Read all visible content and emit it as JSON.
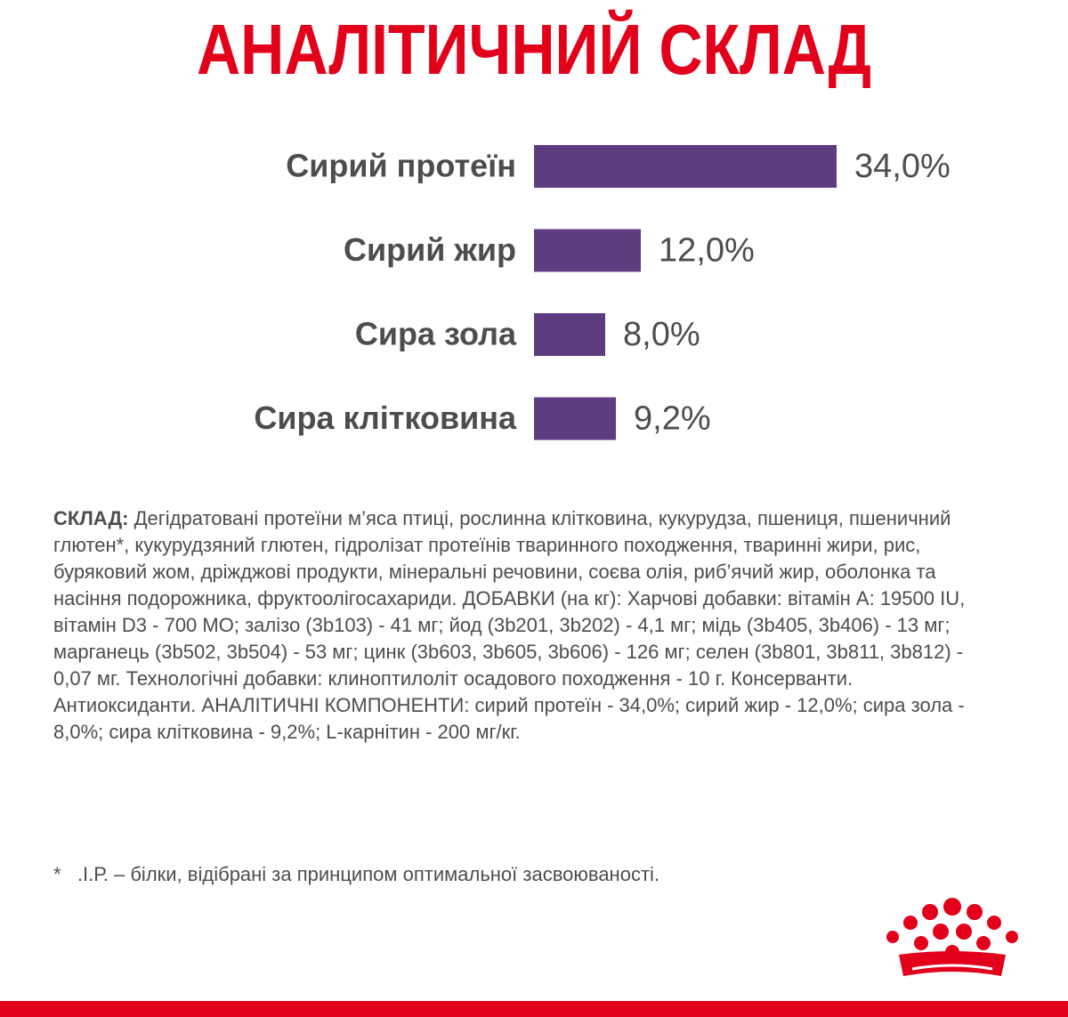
{
  "chart_data": {
    "type": "bar",
    "orientation": "horizontal",
    "title": "АНАЛІТИЧНИЙ СКЛАД",
    "categories": [
      "Сирий протеїн",
      "Сирий жир",
      "Сира зола",
      "Сира клітковина"
    ],
    "values": [
      34.0,
      12.0,
      8.0,
      9.2
    ],
    "value_labels": [
      "34,0%",
      "12,0%",
      "8,0%",
      "9,2%"
    ],
    "color": "#5d3d80"
  },
  "composition": {
    "label": "СКЛАД:",
    "text": "Дегідратовані протеїни м’яса птиці, рослинна клітковина, кукурудза, пшениця, пшеничний глютен*, кукурудзяний глютен, гідролізат протеїнів тваринного походження, тваринні жири, рис, буряковий жом, дріжджові продукти, мінеральні речовини, соєва олія, риб’ячий жир, оболонка та насіння подорожника, фруктоолігосахариди. ДОБАВКИ (на кг): Харчові добавки: вітамін А: 19500 IU, вітамін D3 - 700 МО; залізо (3b103) - 41 мг; йод (3b201, 3b202) - 4,1 мг; мідь (3b405, 3b406) - 13 мг; марганець (3b502, 3b504) - 53 мг; цинк (3b603, 3b605, 3b606) - 126 мг; селен (3b801, 3b811, 3b812) - 0,07 мг. Технологічні добавки: клиноптилоліт осадового походження - 10 г. Консерванти. Антиоксиданти. АНАЛІТИЧНІ КОМПОНЕНТИ: сирий протеїн - 34,0%; сирий жир - 12,0%; сира зола - 8,0%; сира клітковина - 9,2%; L-карнітин - 200 мг/кг.",
    "footnote": "*   .І.Р. – білки, відібрані за принципом оптимальної засвоюваності."
  }
}
